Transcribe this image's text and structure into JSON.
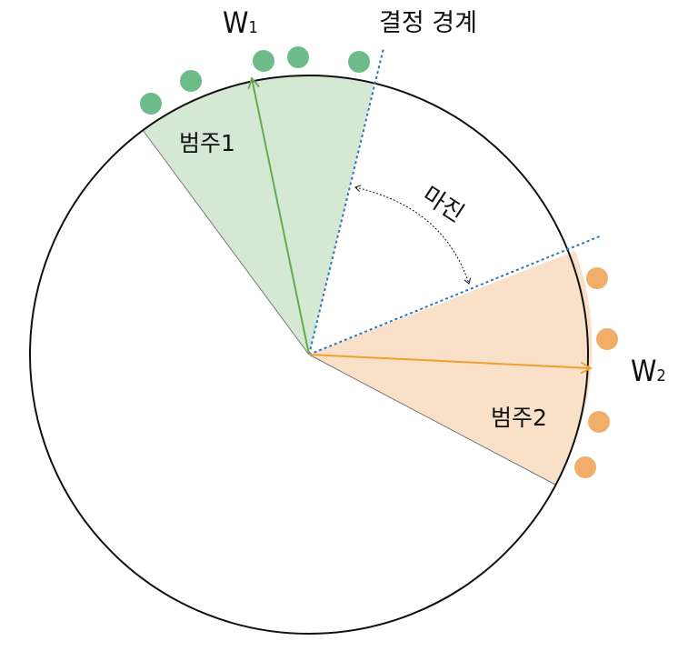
{
  "labels": {
    "w1_main": "W",
    "w1_sub": "1",
    "w2_main": "W",
    "w2_sub": "2",
    "decision_boundary": "결정 경계",
    "category1": "범주1",
    "category2": "범주2",
    "margin": "마진"
  },
  "colors": {
    "circle": "#111111",
    "cat1_fill": "#d5e8d4",
    "cat1_arrow": "#6aa84f",
    "cat1_dot": "#6dbb89",
    "cat2_fill": "#f9e0c8",
    "cat2_arrow": "#f0a030",
    "cat2_dot": "#f2ad68",
    "boundary": "#2e75b6"
  },
  "icons": {
    "cat1_points": "green-dot-icon",
    "cat2_points": "orange-dot-icon"
  }
}
